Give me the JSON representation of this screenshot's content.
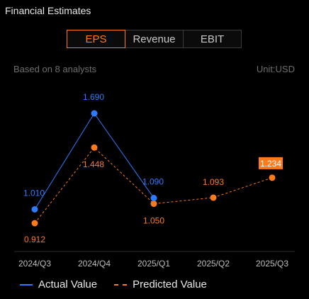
{
  "header": {
    "title": "Financial Estimates"
  },
  "tabs": [
    {
      "label": "EPS",
      "active": true
    },
    {
      "label": "Revenue",
      "active": false
    },
    {
      "label": "EBIT",
      "active": false
    }
  ],
  "meta": {
    "analysts": "Based on 8 analysts",
    "unit": "Unit:USD"
  },
  "colors": {
    "actual": "#2f7bff",
    "predicted": "#ff7a1a",
    "highlight_bg": "#ff7a1a"
  },
  "legend": {
    "actual_label": "Actual Value",
    "predicted_label": "Predicted Value"
  },
  "chart_data": {
    "type": "line",
    "categories": [
      "2024/Q3",
      "2024/Q4",
      "2025/Q1",
      "2025/Q2",
      "2025/Q3"
    ],
    "series": [
      {
        "name": "Actual Value",
        "values": [
          1.01,
          1.69,
          1.09,
          null,
          null
        ],
        "labels": [
          "1.010",
          "1.690",
          "1.090",
          null,
          null
        ]
      },
      {
        "name": "Predicted Value",
        "values": [
          0.912,
          1.448,
          1.05,
          1.093,
          1.234
        ],
        "labels": [
          "0.912",
          "1.448",
          "1.050",
          "1.093",
          "1.234"
        ]
      }
    ],
    "highlight": {
      "series": 1,
      "index": 4
    },
    "grid": false
  }
}
